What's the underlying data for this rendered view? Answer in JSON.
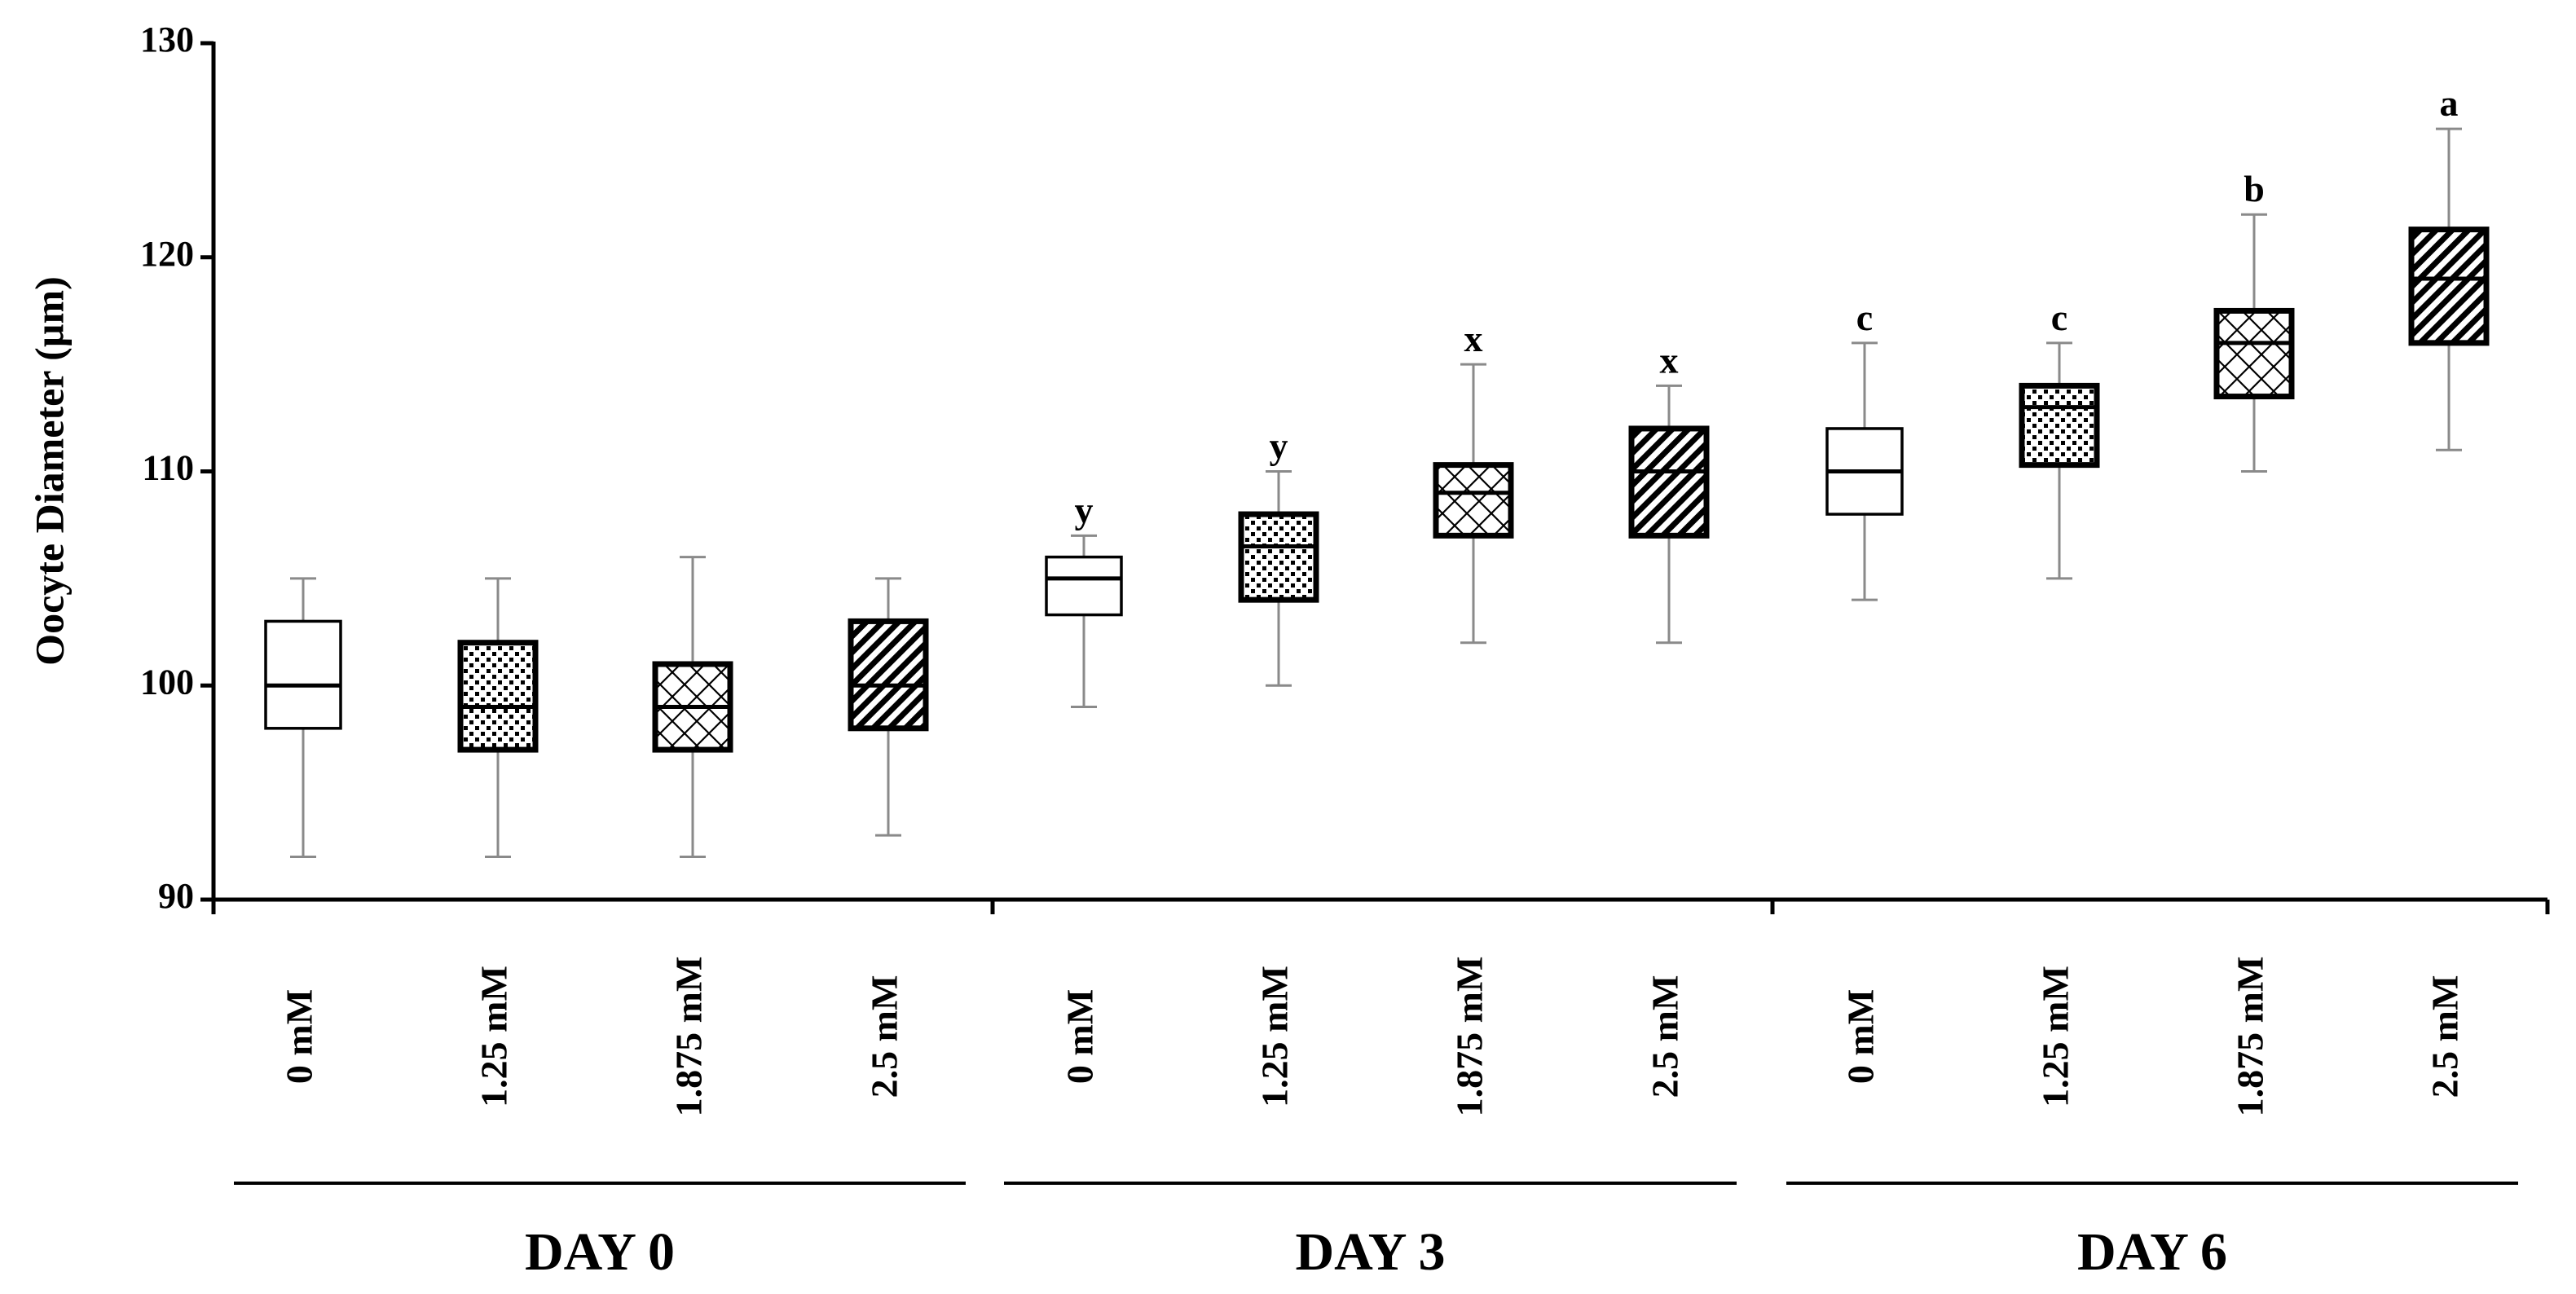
{
  "chart_data": {
    "type": "boxplot",
    "ylabel": "Oocyte Diameter (µm)",
    "ylim": [
      90,
      130
    ],
    "yticks": [
      90,
      100,
      110,
      120,
      130
    ],
    "groups": [
      {
        "name": "DAY 0",
        "boxes": [
          {
            "label": "0 mM",
            "pattern": "none",
            "min": 92,
            "q1": 98,
            "median": 100,
            "q3": 103,
            "max": 105,
            "sig": ""
          },
          {
            "label": "1.25 mM",
            "pattern": "dots",
            "min": 92,
            "q1": 97,
            "median": 99,
            "q3": 102,
            "max": 105,
            "sig": ""
          },
          {
            "label": "1.875 mM",
            "pattern": "crosshatch",
            "min": 92,
            "q1": 97,
            "median": 99,
            "q3": 101,
            "max": 106,
            "sig": ""
          },
          {
            "label": "2.5 mM",
            "pattern": "diagonal",
            "min": 93,
            "q1": 98,
            "median": 100,
            "q3": 103,
            "max": 105,
            "sig": ""
          }
        ]
      },
      {
        "name": "DAY 3",
        "boxes": [
          {
            "label": "0 mM",
            "pattern": "none",
            "min": 99,
            "q1": 103.3,
            "median": 105,
            "q3": 106,
            "max": 107,
            "sig": "y"
          },
          {
            "label": "1.25 mM",
            "pattern": "dots",
            "min": 100,
            "q1": 104,
            "median": 106.5,
            "q3": 108,
            "max": 110,
            "sig": "y"
          },
          {
            "label": "1.875 mM",
            "pattern": "crosshatch",
            "min": 102,
            "q1": 107,
            "median": 109,
            "q3": 110.3,
            "max": 115,
            "sig": "x"
          },
          {
            "label": "2.5 mM",
            "pattern": "diagonal",
            "min": 102,
            "q1": 107,
            "median": 110,
            "q3": 112,
            "max": 114,
            "sig": "x"
          }
        ]
      },
      {
        "name": "DAY 6",
        "boxes": [
          {
            "label": "0 mM",
            "pattern": "none",
            "min": 104,
            "q1": 108,
            "median": 110,
            "q3": 112,
            "max": 116,
            "sig": "c"
          },
          {
            "label": "1.25 mM",
            "pattern": "dots",
            "min": 105,
            "q1": 110.3,
            "median": 113,
            "q3": 114,
            "max": 116,
            "sig": "c"
          },
          {
            "label": "1.875 mM",
            "pattern": "crosshatch",
            "min": 110,
            "q1": 113.5,
            "median": 116,
            "q3": 117.5,
            "max": 122,
            "sig": "b"
          },
          {
            "label": "2.5 mM",
            "pattern": "diagonal",
            "min": 111,
            "q1": 116,
            "median": 119,
            "q3": 121.3,
            "max": 126,
            "sig": "a"
          }
        ]
      }
    ]
  }
}
